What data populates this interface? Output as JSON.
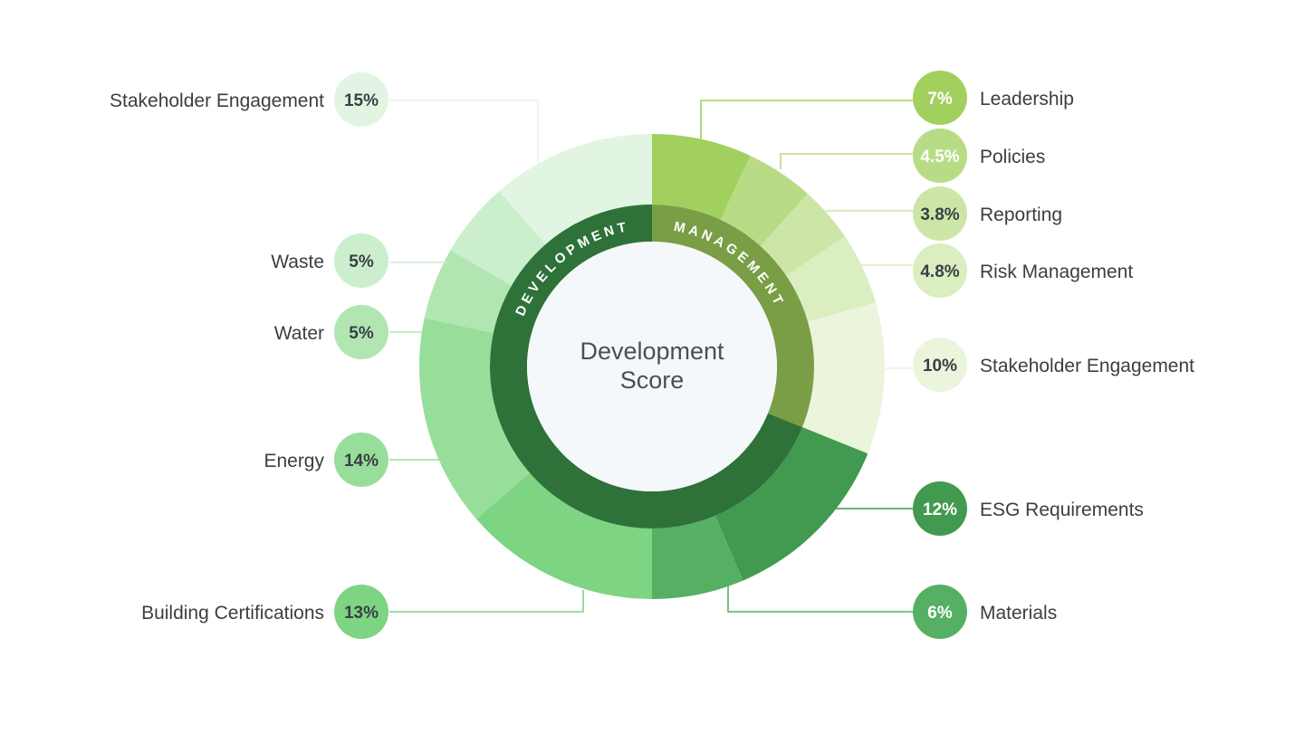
{
  "chart_data": {
    "type": "pie",
    "center_title_line1": "Development",
    "center_title_line2": "Score",
    "inner_ring": [
      {
        "name": "MANAGEMENT",
        "color": "#7a9e45"
      },
      {
        "name": "DEVELOPMENT",
        "color": "#2e7239"
      }
    ],
    "segments": [
      {
        "label": "Leadership",
        "value": 7,
        "display": "7%",
        "group": "MANAGEMENT",
        "color": "#a2d05e",
        "text_color": "#ffffff"
      },
      {
        "label": "Policies",
        "value": 4.5,
        "display": "4.5%",
        "group": "MANAGEMENT",
        "color": "#b8dc85",
        "text_color": "#ffffff"
      },
      {
        "label": "Reporting",
        "value": 3.8,
        "display": "3.8%",
        "group": "MANAGEMENT",
        "color": "#cde6a8",
        "text_color": "#3a3f44"
      },
      {
        "label": "Risk Management",
        "value": 4.8,
        "display": "4.8%",
        "group": "MANAGEMENT",
        "color": "#daeec0",
        "text_color": "#3a3f44"
      },
      {
        "label": "Stakeholder Engagement",
        "value": 10,
        "display": "10%",
        "group": "MANAGEMENT",
        "color": "#eaf5dc",
        "text_color": "#3a3f44"
      },
      {
        "label": "ESG Requirements",
        "value": 12,
        "display": "12%",
        "group": "DEVELOPMENT",
        "color": "#419a4f",
        "text_color": "#ffffff"
      },
      {
        "label": "Materials",
        "value": 6,
        "display": "6%",
        "group": "DEVELOPMENT",
        "color": "#56b063",
        "text_color": "#ffffff"
      },
      {
        "label": "Building Certifications",
        "value": 13,
        "display": "13%",
        "group": "DEVELOPMENT",
        "color": "#7dd483",
        "text_color": "#3a3f44"
      },
      {
        "label": "Energy",
        "value": 14,
        "display": "14%",
        "group": "DEVELOPMENT",
        "color": "#97de9a",
        "text_color": "#3a3f44"
      },
      {
        "label": "Water",
        "value": 5,
        "display": "5%",
        "group": "DEVELOPMENT",
        "color": "#b1e6b3",
        "text_color": "#3a3f44"
      },
      {
        "label": "Waste",
        "value": 5,
        "display": "5%",
        "group": "DEVELOPMENT",
        "color": "#cbeecd",
        "text_color": "#3a3f44"
      },
      {
        "label": "Stakeholder Engagement",
        "value": 15,
        "display": "15%",
        "group": "DEVELOPMENT",
        "color": "#e2f5e3",
        "text_color": "#3a3f44"
      }
    ]
  }
}
